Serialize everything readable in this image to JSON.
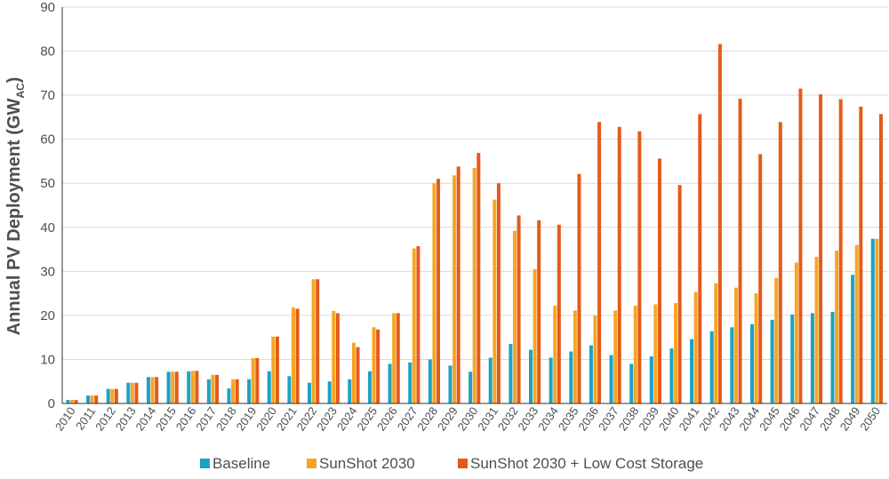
{
  "chart_data": {
    "type": "bar",
    "ylabel": "Annual PV Deployment (GW",
    "ylabel_subscript": "AC",
    "ylabel_close": ")",
    "ylim": [
      0,
      90
    ],
    "yticks": [
      0,
      10,
      20,
      30,
      40,
      50,
      60,
      70,
      80,
      90
    ],
    "grid": true,
    "legend_position": "bottom",
    "categories": [
      "2010",
      "2011",
      "2012",
      "2013",
      "2014",
      "2015",
      "2016",
      "2017",
      "2018",
      "2019",
      "2020",
      "2021",
      "2022",
      "2023",
      "2024",
      "2025",
      "2026",
      "2027",
      "2028",
      "2029",
      "2030",
      "2031",
      "2032",
      "2033",
      "2034",
      "2035",
      "2036",
      "2037",
      "2038",
      "2039",
      "2040",
      "2041",
      "2042",
      "2043",
      "2044",
      "2045",
      "2046",
      "2047",
      "2048",
      "2049",
      "2050"
    ],
    "series": [
      {
        "name": "Baseline",
        "color": "#1ba3c6",
        "values": [
          0.8,
          1.8,
          3.3,
          4.7,
          6.0,
          7.2,
          7.3,
          5.5,
          3.4,
          5.5,
          7.3,
          6.2,
          4.7,
          5.0,
          5.5,
          7.3,
          9.0,
          9.3,
          10.0,
          8.6,
          7.2,
          10.4,
          13.5,
          12.2,
          10.4,
          11.8,
          13.2,
          11.0,
          9.0,
          10.7,
          12.5,
          14.6,
          16.4,
          17.3,
          18.0,
          19.0,
          20.2,
          20.5,
          20.8,
          29.2,
          37.4
        ]
      },
      {
        "name": "SunShot 2030",
        "color": "#f5a623",
        "values": [
          0.8,
          1.8,
          3.3,
          4.7,
          6.0,
          7.2,
          7.4,
          6.5,
          5.5,
          10.3,
          15.2,
          21.8,
          28.2,
          21.0,
          13.8,
          17.3,
          20.5,
          35.2,
          50.0,
          51.8,
          53.5,
          46.3,
          39.2,
          30.5,
          22.2,
          21.1,
          20.0,
          21.1,
          22.2,
          22.5,
          22.8,
          25.3,
          27.3,
          26.3,
          25.0,
          28.5,
          32.0,
          33.3,
          34.7,
          36.0,
          37.4
        ]
      },
      {
        "name": "SunShot 2030 + Low Cost Storage",
        "color": "#e55a1b",
        "values": [
          0.8,
          1.8,
          3.3,
          4.7,
          6.0,
          7.2,
          7.4,
          6.5,
          5.5,
          10.3,
          15.2,
          21.5,
          28.2,
          20.5,
          12.8,
          16.8,
          20.5,
          35.7,
          51.0,
          53.8,
          56.9,
          50.0,
          42.7,
          41.6,
          40.6,
          52.1,
          63.9,
          62.8,
          61.8,
          55.6,
          49.6,
          65.7,
          81.6,
          69.2,
          56.6,
          63.9,
          71.5,
          70.2,
          69.1,
          67.4,
          65.7
        ]
      }
    ]
  }
}
